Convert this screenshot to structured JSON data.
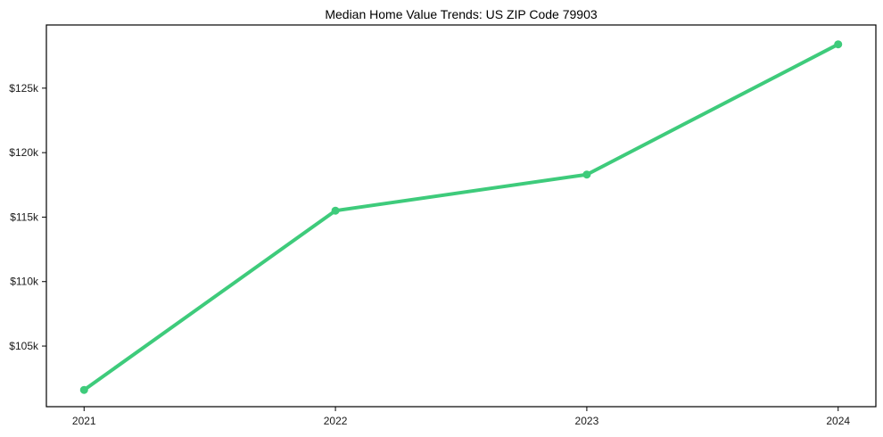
{
  "chart_data": {
    "type": "line",
    "title": "Median Home Value Trends: US ZIP Code 79903",
    "xlabel": "",
    "ylabel": "",
    "categories": [
      "2021",
      "2022",
      "2023",
      "2024"
    ],
    "values": [
      101600,
      115500,
      118300,
      128400
    ],
    "y_ticks": [
      105000,
      110000,
      115000,
      120000,
      125000
    ],
    "y_tick_labels": [
      "$105k",
      "$110k",
      "$115k",
      "$120k",
      "$125k"
    ],
    "ylim": [
      100300,
      129900
    ],
    "x_margin": 0.15,
    "grid": false,
    "legend": false,
    "line_color": "#3ecb7b",
    "marker": "circle",
    "spine_color": "#000000",
    "text_color": "#1a1a1a"
  }
}
